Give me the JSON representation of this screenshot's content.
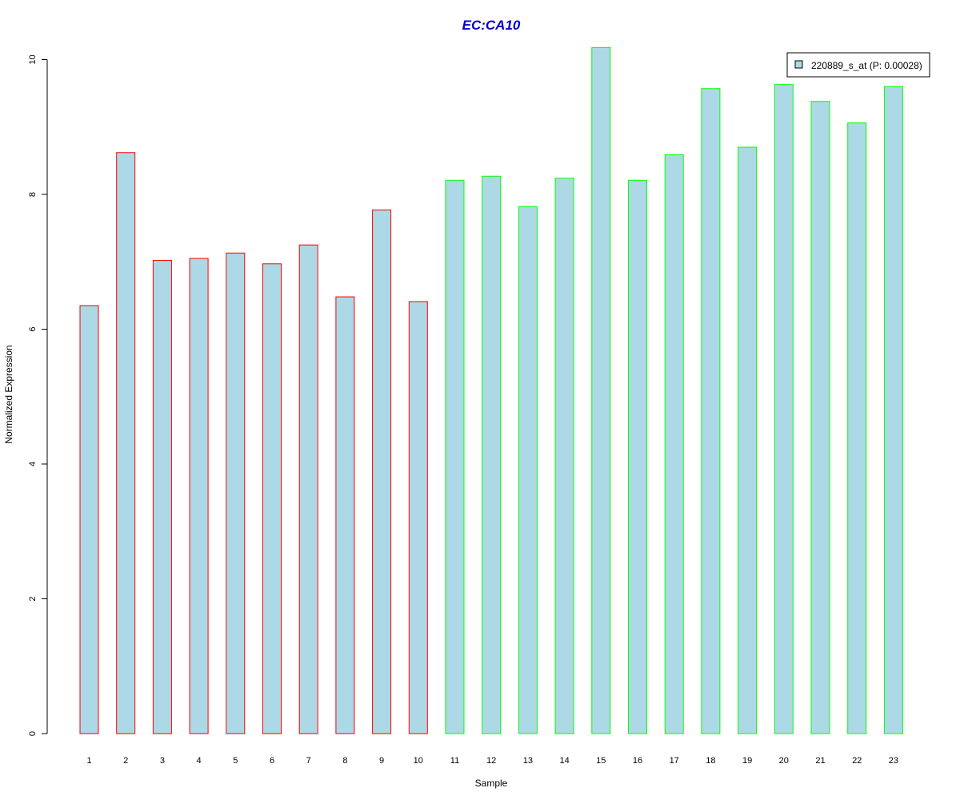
{
  "chart_data": {
    "type": "bar",
    "title": "EC:CA10",
    "xlabel": "Sample",
    "ylabel": "Normalized Expression",
    "ylim": [
      0,
      10
    ],
    "yticks": [
      0,
      2,
      4,
      6,
      8,
      10
    ],
    "categories": [
      "1",
      "2",
      "3",
      "4",
      "5",
      "6",
      "7",
      "8",
      "9",
      "10",
      "11",
      "12",
      "13",
      "14",
      "15",
      "16",
      "17",
      "18",
      "19",
      "20",
      "21",
      "22",
      "23"
    ],
    "series": [
      {
        "name": "220889_s_at (P: 0.00028)",
        "values": [
          6.35,
          8.62,
          7.02,
          7.05,
          7.13,
          6.97,
          7.25,
          6.48,
          7.77,
          6.41,
          8.21,
          8.27,
          7.82,
          8.24,
          10.18,
          8.21,
          8.59,
          9.57,
          8.7,
          9.63,
          9.38,
          9.06,
          9.6
        ]
      }
    ],
    "groups": [
      "group-1",
      "group-1",
      "group-1",
      "group-1",
      "group-1",
      "group-1",
      "group-1",
      "group-1",
      "group-1",
      "group-1",
      "group-2",
      "group-2",
      "group-2",
      "group-2",
      "group-2",
      "group-2",
      "group-2",
      "group-2",
      "group-2",
      "group-2",
      "group-2",
      "group-2",
      "group-2"
    ],
    "colors": {
      "bar_fill": "#add8e6",
      "group_1_border": "#ff0000",
      "group_2_border": "#00ff00",
      "title": "#0000cd",
      "axis": "#000000"
    },
    "legend_position": "top-right",
    "grid": false
  }
}
